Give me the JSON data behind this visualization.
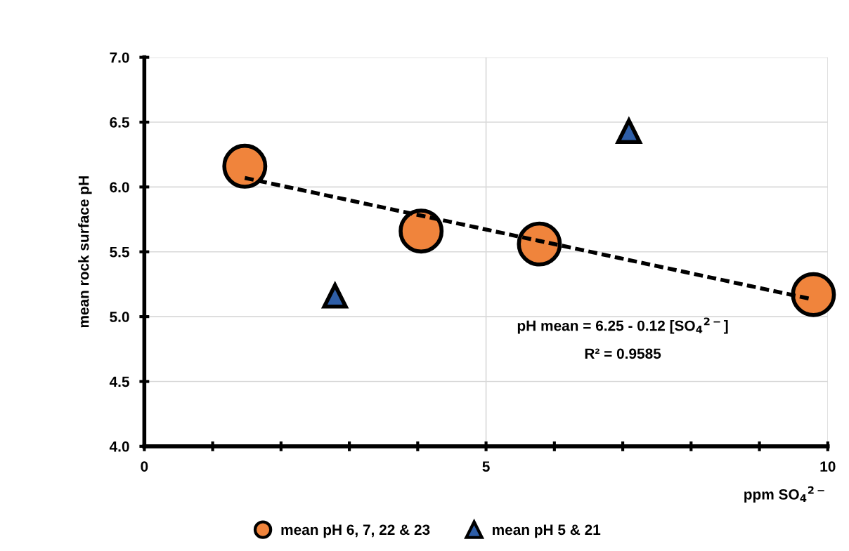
{
  "chart_data": {
    "type": "scatter",
    "xlabel": "ppm SO$_{4}$$^{2−}$",
    "ylabel": "mean rock surface pH",
    "series": [
      {
        "name": "mean pH 6, 7, 22 & 23",
        "type": "scatter",
        "marker": "circle",
        "color": "#f0843c",
        "x": [
          1.47,
          4.05,
          5.78,
          9.79
        ],
        "values": [
          6.16,
          5.66,
          5.56,
          5.17
        ]
      },
      {
        "name": "mean pH 5 & 21",
        "type": "scatter",
        "marker": "triangle",
        "color": "#2e5ea8",
        "x": [
          2.79,
          7.09
        ],
        "values": [
          5.16,
          6.43
        ]
      },
      {
        "type": "line",
        "line_style": "dashed",
        "color": "#000000",
        "x": [
          1.47,
          9.72
        ],
        "values": [
          6.07,
          5.14
        ]
      }
    ],
    "annotations": [
      "pH mean = 6.25 - 0.12 [SO$_{4}$$^{2−}$]",
      "R² = 0.9585"
    ],
    "xlim": [
      0,
      10
    ],
    "ylim": [
      4.0,
      7.0
    ],
    "xticks": [
      0,
      {
        "value": 1,
        "label": null
      },
      {
        "value": 2,
        "label": null
      },
      {
        "value": 3,
        "label": null
      },
      {
        "value": 4,
        "label": null
      },
      5,
      {
        "value": 6,
        "label": null
      },
      {
        "value": 7,
        "label": null
      },
      {
        "value": 8,
        "label": null
      },
      {
        "value": 9,
        "label": null
      },
      10
    ],
    "yticks": [
      {
        "value": 4,
        "label": "4.0"
      },
      4.5,
      {
        "value": 5,
        "label": "5.0"
      },
      5.5,
      {
        "value": 6,
        "label": "6.0"
      },
      6.5,
      {
        "value": 7,
        "label": "7.0"
      }
    ],
    "grid": true,
    "legend": "bottom"
  }
}
